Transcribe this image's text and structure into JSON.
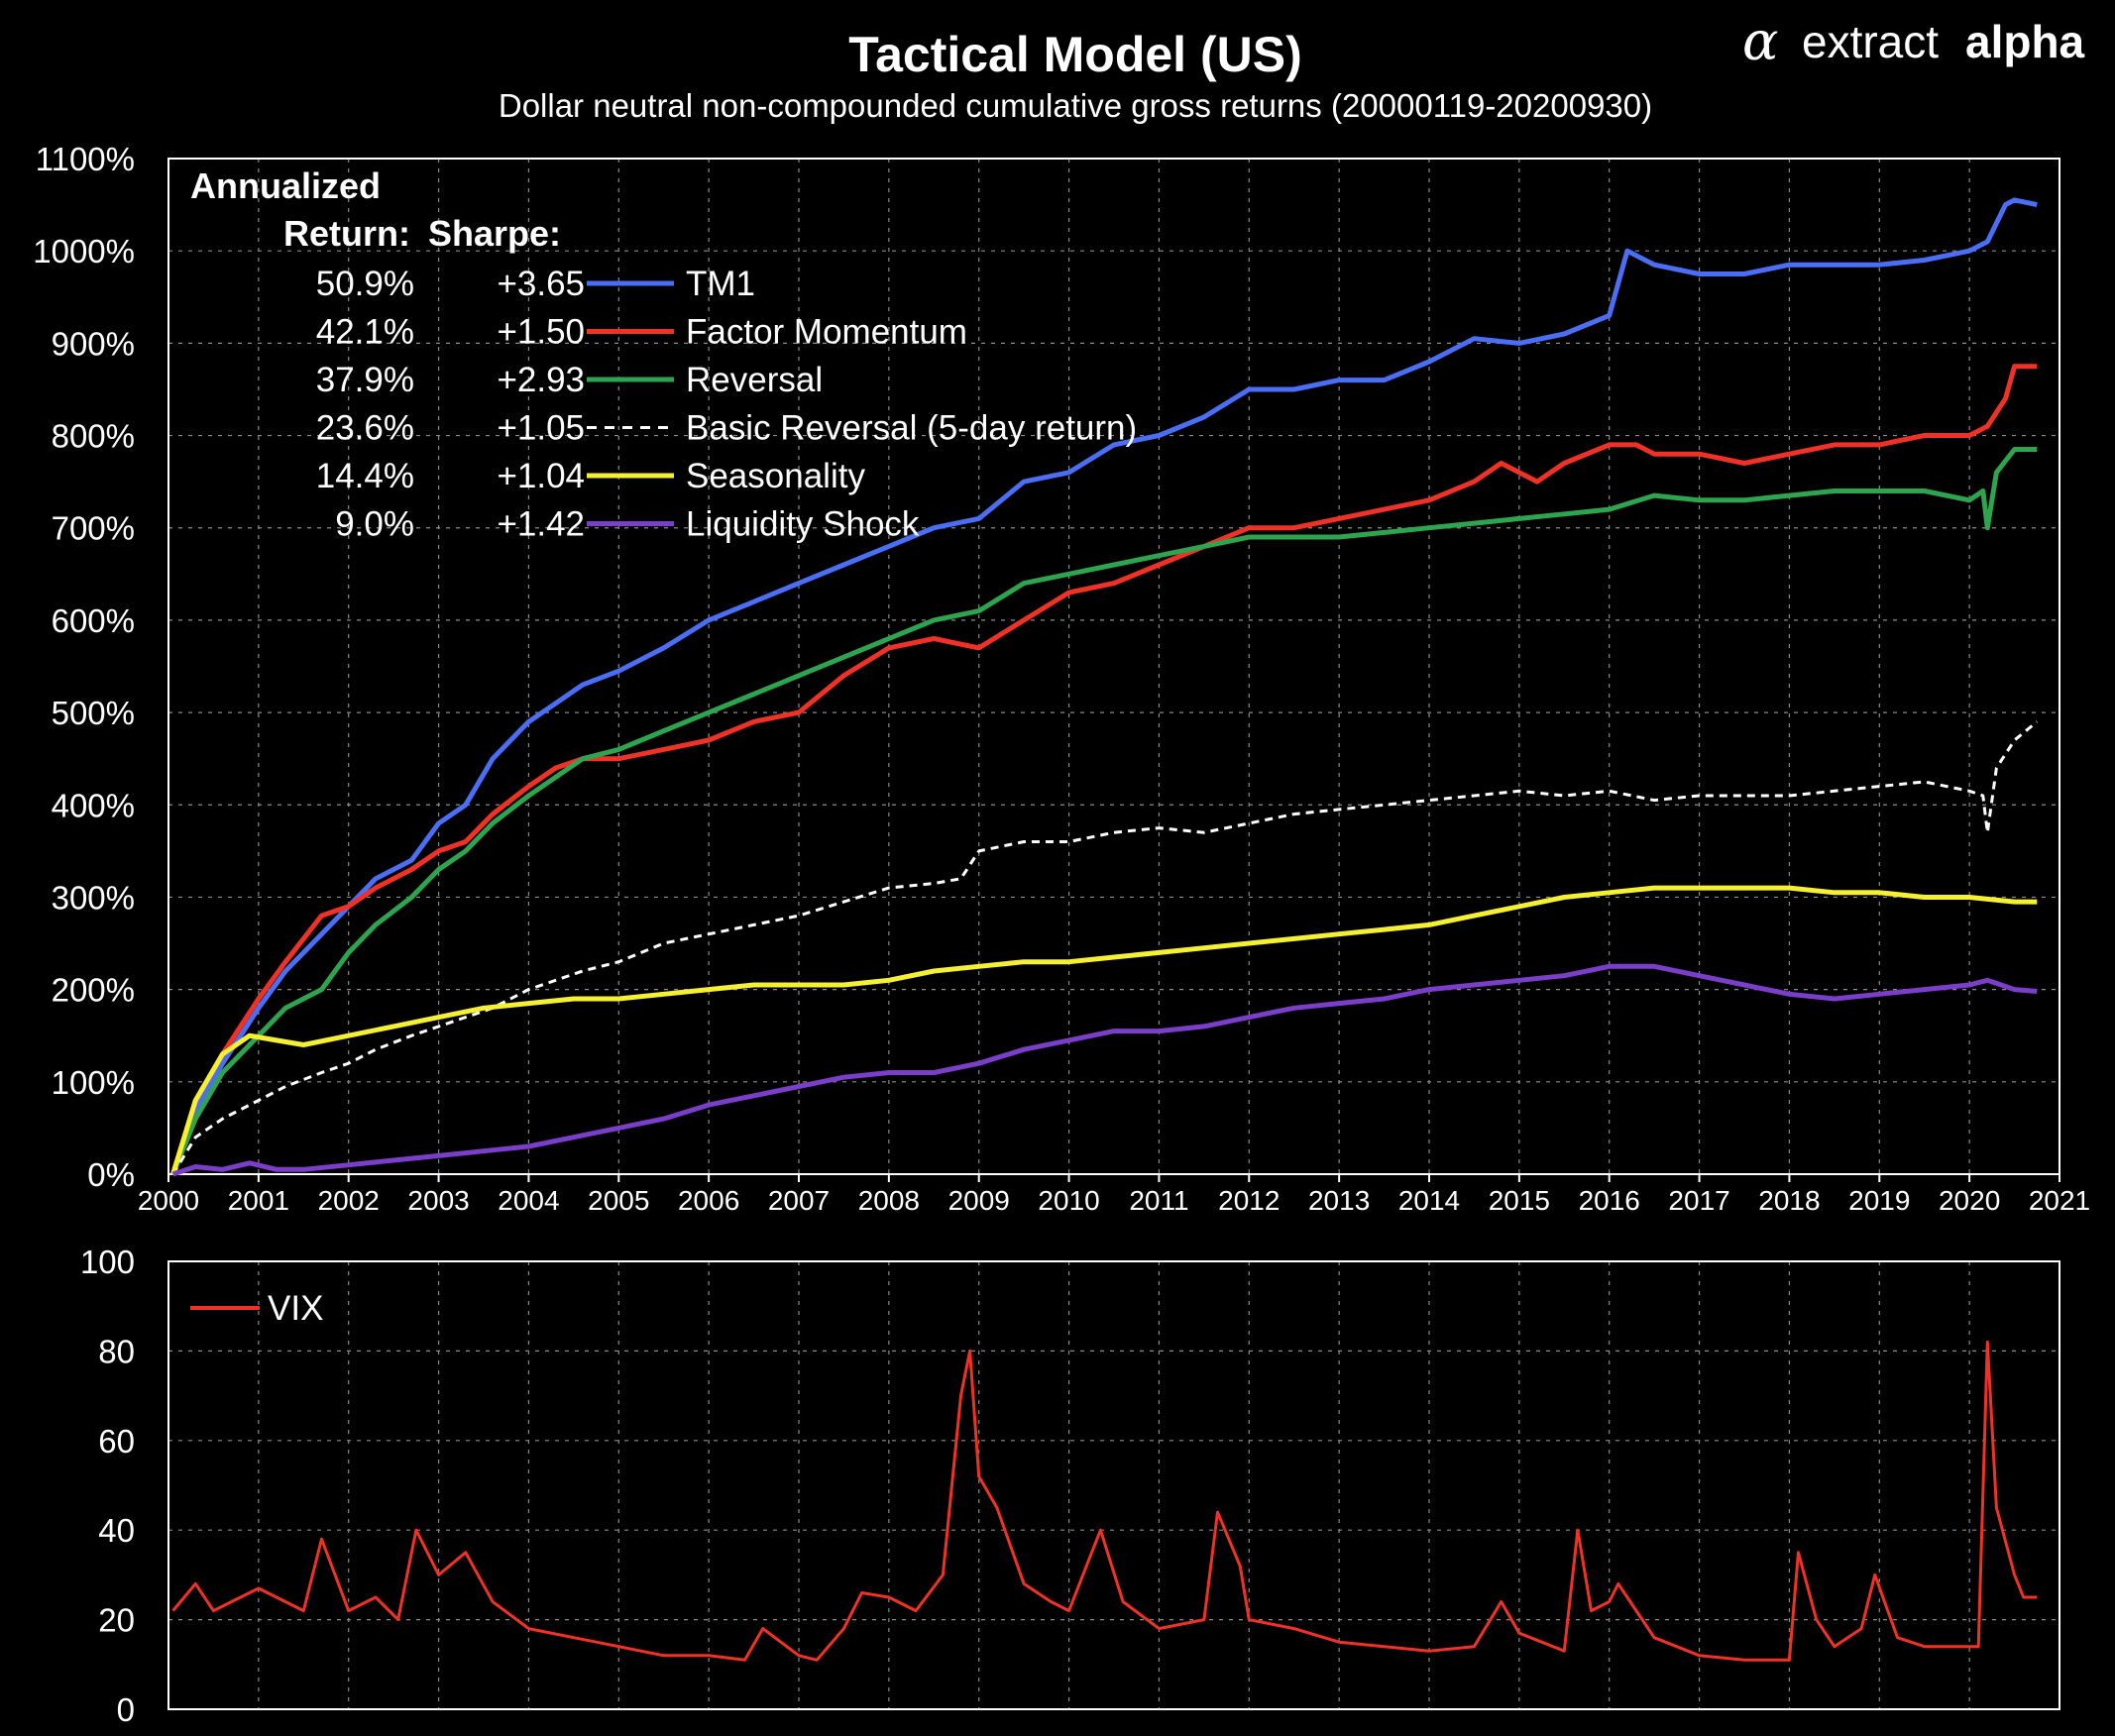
{
  "brand": {
    "word_light": "extract",
    "word_bold": "alpha",
    "icon": "alpha-logo-icon"
  },
  "chart_data": [
    {
      "type": "line",
      "title": "Tactical Model (US)",
      "subtitle": "Dollar neutral non-compounded cumulative gross returns (20000119-20200930)",
      "xlim": [
        2000,
        2021
      ],
      "ylim": [
        0,
        1100
      ],
      "x_ticks": [
        2000,
        2001,
        2002,
        2003,
        2004,
        2005,
        2006,
        2007,
        2008,
        2009,
        2010,
        2011,
        2012,
        2013,
        2014,
        2015,
        2016,
        2017,
        2018,
        2019,
        2020,
        2021
      ],
      "y_ticks": [
        0,
        100,
        200,
        300,
        400,
        500,
        600,
        700,
        800,
        900,
        1000,
        1100
      ],
      "y_tick_suffix": "%",
      "grid": true,
      "legend": {
        "placement": "top-left",
        "heading_line1": "Annualized",
        "heading_return": "Return:",
        "heading_sharpe": "Sharpe:"
      },
      "series": [
        {
          "name": "TM1",
          "annualized_return": "50.9%",
          "sharpe": "+3.65",
          "color": "#4a6ef5",
          "dash": false,
          "x": [
            2000.05,
            2000.3,
            2000.6,
            2001.0,
            2001.3,
            2001.7,
            2002.0,
            2002.3,
            2002.7,
            2003.0,
            2003.3,
            2003.6,
            2004.0,
            2004.3,
            2004.6,
            2005.0,
            2005.5,
            2006.0,
            2006.5,
            2007.0,
            2007.5,
            2008.0,
            2008.5,
            2009.0,
            2009.5,
            2010.0,
            2010.5,
            2011.0,
            2011.5,
            2012.0,
            2012.5,
            2013.0,
            2013.5,
            2014.0,
            2014.5,
            2015.0,
            2015.5,
            2016.0,
            2016.2,
            2016.5,
            2017.0,
            2017.5,
            2018.0,
            2018.5,
            2019.0,
            2019.5,
            2020.0,
            2020.2,
            2020.4,
            2020.5,
            2020.75
          ],
          "y": [
            0,
            70,
            120,
            180,
            220,
            260,
            290,
            320,
            340,
            380,
            400,
            450,
            490,
            510,
            530,
            545,
            570,
            600,
            620,
            640,
            660,
            680,
            700,
            710,
            750,
            760,
            790,
            800,
            820,
            850,
            850,
            860,
            860,
            880,
            905,
            900,
            910,
            930,
            1000,
            985,
            975,
            975,
            985,
            985,
            985,
            990,
            1000,
            1010,
            1050,
            1055,
            1050
          ]
        },
        {
          "name": "Factor Momentum",
          "annualized_return": "42.1%",
          "sharpe": "+1.50",
          "color": "#f03226",
          "dash": false,
          "x": [
            2000.05,
            2000.3,
            2000.6,
            2001.0,
            2001.3,
            2001.7,
            2002.0,
            2002.3,
            2002.7,
            2003.0,
            2003.3,
            2003.6,
            2004.0,
            2004.3,
            2004.6,
            2005.0,
            2005.5,
            2006.0,
            2006.5,
            2007.0,
            2007.5,
            2008.0,
            2008.5,
            2009.0,
            2009.5,
            2010.0,
            2010.5,
            2011.0,
            2011.5,
            2012.0,
            2012.5,
            2013.0,
            2013.5,
            2014.0,
            2014.5,
            2014.8,
            2015.2,
            2015.5,
            2016.0,
            2016.3,
            2016.5,
            2017.0,
            2017.5,
            2018.0,
            2018.5,
            2019.0,
            2019.5,
            2020.0,
            2020.2,
            2020.4,
            2020.5,
            2020.75
          ],
          "y": [
            0,
            80,
            130,
            190,
            230,
            280,
            290,
            310,
            330,
            350,
            360,
            390,
            420,
            440,
            450,
            450,
            460,
            470,
            490,
            500,
            540,
            570,
            580,
            570,
            600,
            630,
            640,
            660,
            680,
            700,
            700,
            710,
            720,
            730,
            750,
            770,
            750,
            770,
            790,
            790,
            780,
            780,
            770,
            780,
            790,
            790,
            800,
            800,
            810,
            840,
            875,
            875
          ]
        },
        {
          "name": "Reversal",
          "annualized_return": "37.9%",
          "sharpe": "+2.93",
          "color": "#2ea44f",
          "dash": false,
          "x": [
            2000.05,
            2000.3,
            2000.6,
            2001.0,
            2001.3,
            2001.7,
            2002.0,
            2002.3,
            2002.7,
            2003.0,
            2003.3,
            2003.6,
            2004.0,
            2004.3,
            2004.6,
            2005.0,
            2005.5,
            2006.0,
            2006.5,
            2007.0,
            2007.5,
            2008.0,
            2008.5,
            2009.0,
            2009.5,
            2010.0,
            2010.5,
            2011.0,
            2011.5,
            2012.0,
            2012.5,
            2013.0,
            2013.5,
            2014.0,
            2014.5,
            2015.0,
            2015.5,
            2016.0,
            2016.5,
            2017.0,
            2017.5,
            2018.0,
            2018.5,
            2019.0,
            2019.5,
            2020.0,
            2020.15,
            2020.2,
            2020.3,
            2020.5,
            2020.75
          ],
          "y": [
            0,
            60,
            110,
            150,
            180,
            200,
            240,
            270,
            300,
            330,
            350,
            380,
            410,
            430,
            450,
            460,
            480,
            500,
            520,
            540,
            560,
            580,
            600,
            610,
            640,
            650,
            660,
            670,
            680,
            690,
            690,
            690,
            695,
            700,
            705,
            710,
            715,
            720,
            735,
            730,
            730,
            735,
            740,
            740,
            740,
            730,
            740,
            700,
            760,
            785,
            785
          ]
        },
        {
          "name": "Basic Reversal (5-day return)",
          "annualized_return": "23.6%",
          "sharpe": "+1.05",
          "color": "#ffffff",
          "dash": true,
          "x": [
            2000.05,
            2000.3,
            2000.6,
            2001.0,
            2001.3,
            2001.7,
            2002.0,
            2002.3,
            2002.7,
            2003.0,
            2003.3,
            2003.6,
            2004.0,
            2004.3,
            2004.6,
            2005.0,
            2005.5,
            2006.0,
            2006.5,
            2007.0,
            2007.5,
            2008.0,
            2008.5,
            2008.8,
            2009.0,
            2009.5,
            2010.0,
            2010.5,
            2011.0,
            2011.5,
            2012.0,
            2012.5,
            2013.0,
            2013.5,
            2014.0,
            2014.5,
            2015.0,
            2015.5,
            2016.0,
            2016.5,
            2017.0,
            2017.5,
            2018.0,
            2018.5,
            2019.0,
            2019.5,
            2020.0,
            2020.15,
            2020.2,
            2020.3,
            2020.5,
            2020.75
          ],
          "y": [
            0,
            40,
            60,
            80,
            95,
            110,
            120,
            135,
            150,
            160,
            170,
            180,
            200,
            210,
            220,
            230,
            250,
            260,
            270,
            280,
            295,
            310,
            315,
            320,
            350,
            360,
            360,
            370,
            375,
            370,
            380,
            390,
            395,
            400,
            405,
            410,
            415,
            410,
            415,
            405,
            410,
            410,
            410,
            415,
            420,
            425,
            415,
            410,
            370,
            440,
            470,
            490
          ]
        },
        {
          "name": "Seasonality",
          "annualized_return": "14.4%",
          "sharpe": "+1.04",
          "color": "#f5f032",
          "dash": false,
          "x": [
            2000.05,
            2000.3,
            2000.6,
            2000.9,
            2001.2,
            2001.5,
            2002.0,
            2002.5,
            2003.0,
            2003.5,
            2004.0,
            2004.5,
            2005.0,
            2005.5,
            2006.0,
            2006.5,
            2007.0,
            2007.5,
            2008.0,
            2008.5,
            2009.0,
            2009.5,
            2010.0,
            2010.5,
            2011.0,
            2011.5,
            2012.0,
            2012.5,
            2013.0,
            2013.5,
            2014.0,
            2014.5,
            2015.0,
            2015.5,
            2016.0,
            2016.5,
            2017.0,
            2017.5,
            2018.0,
            2018.5,
            2019.0,
            2019.5,
            2020.0,
            2020.5,
            2020.75
          ],
          "y": [
            0,
            80,
            130,
            150,
            145,
            140,
            150,
            160,
            170,
            180,
            185,
            190,
            190,
            195,
            200,
            205,
            205,
            205,
            210,
            220,
            225,
            230,
            230,
            235,
            240,
            245,
            250,
            255,
            260,
            265,
            270,
            280,
            290,
            300,
            305,
            310,
            310,
            310,
            310,
            305,
            305,
            300,
            300,
            295,
            295
          ]
        },
        {
          "name": "Liquidity Shock",
          "annualized_return": "9.0%",
          "sharpe": "+1.42",
          "color": "#7a3ec8",
          "dash": false,
          "x": [
            2000.05,
            2000.3,
            2000.6,
            2000.9,
            2001.2,
            2001.5,
            2002.0,
            2002.5,
            2003.0,
            2003.5,
            2004.0,
            2004.5,
            2005.0,
            2005.5,
            2006.0,
            2006.5,
            2007.0,
            2007.5,
            2008.0,
            2008.5,
            2009.0,
            2009.5,
            2010.0,
            2010.5,
            2011.0,
            2011.5,
            2012.0,
            2012.5,
            2013.0,
            2013.5,
            2014.0,
            2014.5,
            2015.0,
            2015.5,
            2016.0,
            2016.5,
            2017.0,
            2017.5,
            2018.0,
            2018.5,
            2019.0,
            2019.5,
            2020.0,
            2020.2,
            2020.5,
            2020.75
          ],
          "y": [
            0,
            8,
            5,
            12,
            5,
            5,
            10,
            15,
            20,
            25,
            30,
            40,
            50,
            60,
            75,
            85,
            95,
            105,
            110,
            110,
            120,
            135,
            145,
            155,
            155,
            160,
            170,
            180,
            185,
            190,
            200,
            205,
            210,
            215,
            225,
            225,
            215,
            205,
            195,
            190,
            195,
            200,
            205,
            210,
            200,
            198
          ]
        }
      ]
    },
    {
      "type": "line",
      "xlim": [
        2000,
        2021
      ],
      "ylim": [
        0,
        100
      ],
      "y_ticks": [
        0,
        20,
        40,
        60,
        80,
        100
      ],
      "grid": true,
      "legend": {
        "placement": "top-left"
      },
      "series": [
        {
          "name": "VIX",
          "color": "#f03226",
          "x": [
            2000.05,
            2000.3,
            2000.5,
            2000.8,
            2001.0,
            2001.2,
            2001.5,
            2001.7,
            2002.0,
            2002.3,
            2002.55,
            2002.75,
            2003.0,
            2003.3,
            2003.6,
            2004.0,
            2004.5,
            2005.0,
            2005.5,
            2006.0,
            2006.4,
            2006.6,
            2007.0,
            2007.2,
            2007.5,
            2007.7,
            2008.0,
            2008.3,
            2008.6,
            2008.8,
            2008.9,
            2009.0,
            2009.2,
            2009.5,
            2009.8,
            2010.0,
            2010.35,
            2010.6,
            2011.0,
            2011.5,
            2011.65,
            2011.9,
            2012.0,
            2012.5,
            2013.0,
            2013.5,
            2014.0,
            2014.5,
            2014.8,
            2015.0,
            2015.5,
            2015.65,
            2015.8,
            2016.0,
            2016.1,
            2016.5,
            2017.0,
            2017.5,
            2018.0,
            2018.1,
            2018.3,
            2018.5,
            2018.8,
            2018.95,
            2019.2,
            2019.5,
            2020.0,
            2020.1,
            2020.2,
            2020.3,
            2020.5,
            2020.6,
            2020.75
          ],
          "y": [
            22,
            28,
            22,
            25,
            27,
            25,
            22,
            38,
            22,
            25,
            20,
            40,
            30,
            35,
            24,
            18,
            16,
            14,
            12,
            12,
            11,
            18,
            12,
            11,
            18,
            26,
            25,
            22,
            30,
            70,
            80,
            52,
            45,
            28,
            24,
            22,
            40,
            24,
            18,
            20,
            44,
            32,
            20,
            18,
            15,
            14,
            13,
            14,
            24,
            17,
            13,
            40,
            22,
            24,
            28,
            16,
            12,
            11,
            11,
            35,
            20,
            14,
            18,
            30,
            16,
            14,
            14,
            14,
            82,
            45,
            30,
            25,
            25
          ]
        }
      ]
    }
  ]
}
